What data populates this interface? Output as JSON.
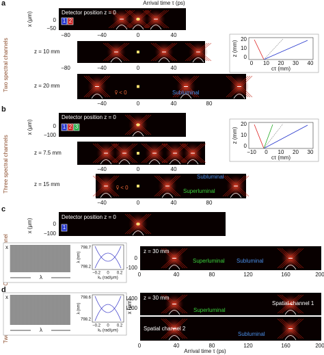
{
  "axis_title_top": "Arrival time τ (ps)",
  "axis_title_bottom": "Arrival time τ (ps)",
  "panels": [
    {
      "letter": "a",
      "side_label": "Two spectral channels",
      "y_axis_label": "x (μm)",
      "strips": [
        {
          "label": "Detector position z = 0",
          "y_ticks": [
            "0",
            "−50"
          ],
          "x_ticks": [
            "−80",
            "−40",
            "0",
            "40"
          ],
          "channels": [
            "1",
            "2"
          ]
        },
        {
          "label": "z = 10 mm",
          "x_ticks": [
            "−80",
            "−40",
            "0",
            "40"
          ]
        },
        {
          "label": "z = 20 mm",
          "x_ticks": [
            "−40",
            "0",
            "40",
            "80"
          ],
          "annotations": [
            "ṽ < 0",
            "Subluminal"
          ]
        }
      ],
      "inset": {
        "y_label": "z (mm)",
        "y_ticks": [
          "20",
          "10",
          "0"
        ],
        "x_label": "cτ (mm)",
        "x_ticks": [
          "0",
          "10",
          "20",
          "30",
          "40"
        ]
      }
    },
    {
      "letter": "b",
      "side_label": "Three spectral channels",
      "y_axis_label": "x (μm)",
      "strips": [
        {
          "label": "Detector position z = 0",
          "y_ticks": [
            "0",
            "−100"
          ],
          "channels": [
            "1",
            "2",
            "3"
          ]
        },
        {
          "label": "z = 7.5 mm",
          "x_ticks": [
            "−40",
            "0",
            "40"
          ]
        },
        {
          "label": "z = 15 mm",
          "x_ticks": [
            "−40",
            "0",
            "40",
            "80"
          ],
          "annotations": [
            "ṽ < 0",
            "Superluminal",
            "Subluminal"
          ]
        }
      ],
      "inset": {
        "y_label": "z (mm)",
        "y_ticks": [
          "20",
          "10",
          "0"
        ],
        "x_label": "cτ (mm)",
        "x_ticks": [
          "−10",
          "0",
          "10",
          "20",
          "30"
        ]
      }
    },
    {
      "letter": "c",
      "side_label": "One spectral channel",
      "y_axis_label": "x (μm)",
      "strips": [
        {
          "label": "Detector position z = 0",
          "y_ticks": [
            "0",
            "−100"
          ],
          "channels": [
            "1"
          ]
        },
        {
          "label": "z = 30 mm",
          "y_ticks": [
            "0",
            "−100"
          ],
          "x_ticks": [
            "0",
            "40",
            "80",
            "120",
            "160",
            "200"
          ],
          "annotations": [
            "Superluminal",
            "Subluminal"
          ]
        }
      ],
      "grating": {
        "x_label": "x",
        "lambda_label": "λ",
        "plot_y_label": "λ (nm)",
        "plot_y_ticks": [
          "798.7",
          "798.2"
        ],
        "plot_x_label": "kₓ (rad/μm)",
        "plot_x_ticks": [
          "−0.2",
          "0",
          "0.2"
        ]
      }
    },
    {
      "letter": "d",
      "side_label": "Two spatial channels",
      "y_axis_label": "x (μm)",
      "strips": [
        {
          "label": "z = 30 mm",
          "y_ticks": [
            "1400",
            "1200"
          ],
          "annotations": [
            "Superluminal",
            "Spatial channel 1"
          ]
        },
        {
          "label": "Spatial channel 2",
          "x_ticks": [
            "0",
            "40",
            "80",
            "120",
            "160",
            "200"
          ],
          "annotations": [
            "Subluminal"
          ]
        }
      ],
      "grating": {
        "x_label": "x",
        "lambda_label": "λ",
        "plot_y_label": "λ (nm)",
        "plot_y_ticks": [
          "798.6",
          "798.2"
        ],
        "plot_x_label": "kₓ (rad/μm)",
        "plot_x_ticks": [
          "−0.2",
          "0",
          "0.2"
        ]
      }
    }
  ]
}
